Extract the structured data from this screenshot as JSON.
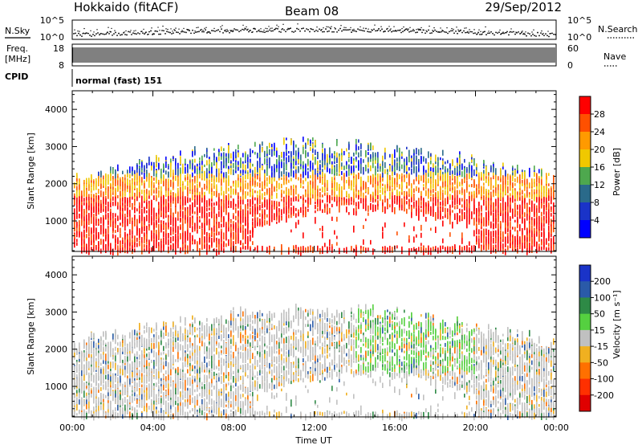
{
  "header": {
    "station": "Hokkaido (fitACF)",
    "beam": "Beam 08",
    "date": "29/Sep/2012"
  },
  "status_panels": {
    "nsky_label": "N.Sky",
    "nsky_ticks": [
      "10^5",
      "10^0"
    ],
    "nsearch_label": "N.Search",
    "freq_label_1": "Freq.",
    "freq_label_2": "[MHz]",
    "freq_ticks": [
      "18",
      "8"
    ],
    "nave_label": "Nave",
    "nave_ticks": [
      "60",
      "0"
    ],
    "cpid_label": "CPID",
    "cpid_text": "normal (fast) 151"
  },
  "chart_data": [
    {
      "type": "heatmap",
      "title": "",
      "quantity": "Power",
      "colorbar_label": "Power [dB]",
      "colorbar_ticks": [
        28,
        24,
        20,
        16,
        12,
        8,
        4
      ],
      "colorbar_colors": [
        "#ff0000",
        "#ff5000",
        "#ff9a00",
        "#f0c800",
        "#4ea84e",
        "#2a6a8a",
        "#1a33c8",
        "#0000ff"
      ],
      "xlabel": "",
      "ylabel": "Slant Range [km]",
      "x_ticks": [
        "00:00",
        "04:00",
        "08:00",
        "12:00",
        "16:00",
        "20:00",
        "00:00"
      ],
      "xlim_hours": [
        0,
        24
      ],
      "y_ticks": [
        1000,
        2000,
        3000,
        4000
      ],
      "ylim_km": [
        180,
        4500
      ],
      "grid": false
    },
    {
      "type": "heatmap",
      "title": "",
      "quantity": "Velocity",
      "colorbar_label": "Velocity [m s⁻¹]",
      "colorbar_ticks": [
        200,
        100,
        50,
        15,
        -15,
        -50,
        -100,
        -200
      ],
      "colorbar_colors": [
        "#1a33c8",
        "#2a5aa8",
        "#2e8a46",
        "#55d040",
        "#c0c0c0",
        "#f0b020",
        "#ff7000",
        "#ff3000",
        "#e00000"
      ],
      "xlabel": "Time UT",
      "ylabel": "Slant Range [km]",
      "x_ticks": [
        "00:00",
        "04:00",
        "08:00",
        "12:00",
        "16:00",
        "20:00",
        "00:00"
      ],
      "xlim_hours": [
        0,
        24
      ],
      "y_ticks": [
        1000,
        2000,
        3000,
        4000
      ],
      "ylim_km": [
        180,
        4500
      ],
      "grid": false
    }
  ]
}
